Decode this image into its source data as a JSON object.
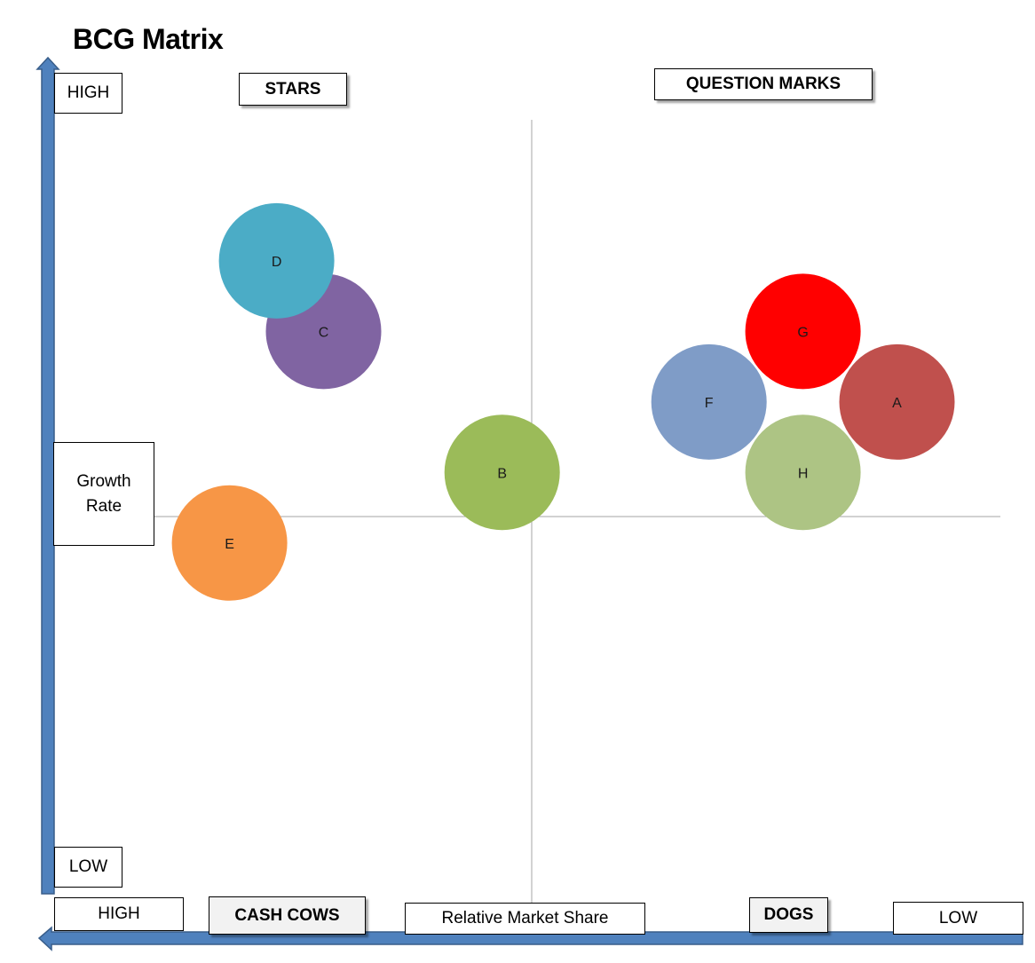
{
  "title": "BCG Matrix",
  "axes": {
    "y_high": "HIGH",
    "y_low": "LOW",
    "y_label": "Growth Rate",
    "x_high": "HIGH",
    "x_low": "LOW",
    "x_label": "Relative Market Share"
  },
  "quadrants": {
    "stars": "STARS",
    "question_marks": "QUESTION MARKS",
    "cash_cows": "CASH COWS",
    "dogs": "DOGS"
  },
  "colors": {
    "axis_arrow": "#4f81bd",
    "axis_arrow_border": "#385d8a",
    "divider": "#a6a6a6"
  },
  "chart_data": {
    "type": "scatter",
    "title": "BCG Matrix",
    "xlabel": "Relative Market Share",
    "ylabel": "Growth Rate",
    "xlim": [
      0,
      100
    ],
    "ylim": [
      0,
      100
    ],
    "x_direction": "high-to-low",
    "points": [
      {
        "label": "A",
        "x": 89,
        "y": 64,
        "color": "#c0504d"
      },
      {
        "label": "B",
        "x": 47,
        "y": 55,
        "color": "#9bbb59"
      },
      {
        "label": "C",
        "x": 28,
        "y": 73,
        "color": "#8064a2"
      },
      {
        "label": "D",
        "x": 23,
        "y": 82,
        "color": "#4bacc6"
      },
      {
        "label": "E",
        "x": 18,
        "y": 46,
        "color": "#f79646"
      },
      {
        "label": "F",
        "x": 69,
        "y": 64,
        "color": "#7f9cc7"
      },
      {
        "label": "G",
        "x": 79,
        "y": 73,
        "color": "#ff0000"
      },
      {
        "label": "H",
        "x": 79,
        "y": 55,
        "color": "#adc484"
      }
    ]
  }
}
